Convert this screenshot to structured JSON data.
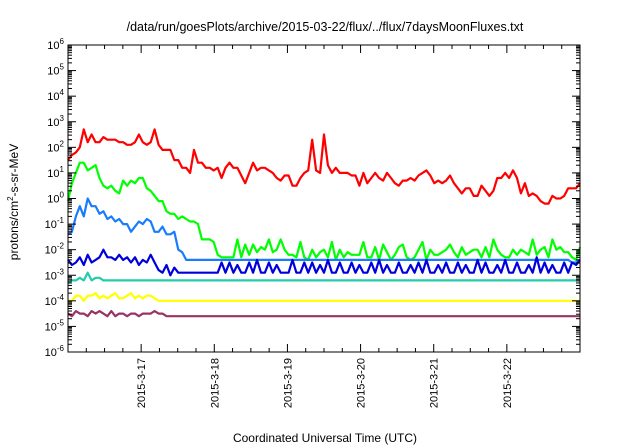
{
  "chart_data": {
    "type": "line",
    "title": "/data/run/goesPlots/archive/2015-03-22/flux/../flux/7daysMoonFluxes.txt",
    "xlabel": "Coordinated Universal Time (UTC)",
    "ylabel_main": "protons/cm",
    "ylabel_sup": "2",
    "ylabel_rest": "-s-sr-MeV",
    "y_scale": "log",
    "ylim_exponents": [
      -6,
      6
    ],
    "y_ticks": [
      {
        "base": "10",
        "exp": "-6",
        "e": -6
      },
      {
        "base": "10",
        "exp": "-5",
        "e": -5
      },
      {
        "base": "10",
        "exp": "-4",
        "e": -4
      },
      {
        "base": "10",
        "exp": "-3",
        "e": -3
      },
      {
        "base": "10",
        "exp": "-2",
        "e": -2
      },
      {
        "base": "10",
        "exp": "-1",
        "e": -1
      },
      {
        "base": "10",
        "exp": "0",
        "e": 0
      },
      {
        "base": "10",
        "exp": "1",
        "e": 1
      },
      {
        "base": "10",
        "exp": "2",
        "e": 2
      },
      {
        "base": "10",
        "exp": "3",
        "e": 3
      },
      {
        "base": "10",
        "exp": "4",
        "e": 4
      },
      {
        "base": "10",
        "exp": "5",
        "e": 5
      },
      {
        "base": "10",
        "exp": "6",
        "e": 6
      }
    ],
    "x_range_days": [
      "2015-03-16T00:00",
      "2015-03-23T00:00"
    ],
    "x_ticks": [
      "2015-3-17",
      "2015-3-18",
      "2015-3-19",
      "2015-3-20",
      "2015-3-21",
      "2015-3-22"
    ],
    "grid": false,
    "legend": "none",
    "series": [
      {
        "color": "#ff0000",
        "y": [
          1.5,
          1.7,
          1.8,
          2.0,
          2.7,
          2.2,
          2.5,
          2.2,
          2.2,
          2.4,
          2.3,
          2.3,
          2.3,
          2.2,
          2.2,
          2.1,
          2.1,
          2.2,
          2.5,
          2.2,
          2.1,
          2.2,
          2.7,
          2.1,
          1.9,
          1.9,
          1.9,
          1.5,
          1.5,
          1.2,
          1.2,
          1.0,
          1.9,
          1.4,
          1.4,
          1.2,
          1.2,
          1.1,
          1.2,
          0.8,
          1.2,
          1.4,
          1.2,
          1.2,
          0.9,
          0.6,
          1.0,
          1.4,
          1.1,
          1.2,
          1.2,
          1.1,
          1.0,
          0.8,
          0.7,
          0.9,
          0.9,
          0.5,
          0.5,
          0.8,
          1.0,
          1.1,
          2.3,
          1.1,
          1.0,
          2.5,
          1.3,
          1.0,
          1.2,
          1.0,
          1.0,
          1.0,
          0.9,
          0.9,
          0.5,
          1.0,
          0.6,
          0.8,
          1.0,
          0.8,
          0.7,
          1.0,
          0.8,
          0.6,
          0.5,
          0.7,
          0.7,
          0.8,
          0.7,
          0.9,
          1.0,
          1.1,
          0.9,
          0.6,
          0.7,
          0.6,
          0.7,
          0.9,
          0.6,
          0.4,
          0.2,
          0.4,
          0.4,
          0.1,
          0.1,
          0.5,
          0.3,
          0.1,
          0.3,
          0.8,
          0.8,
          1.0,
          0.8,
          1.1,
          0.8,
          0.2,
          0.6,
          0.1,
          0.2,
          0.1,
          -0.1,
          -0.2,
          -0.2,
          0.1,
          0.0,
          0.0,
          0.1,
          0.4,
          0.4,
          0.4,
          0.6
        ]
      },
      {
        "color": "#00ff00",
        "y": [
          -0.1,
          0.6,
          1.0,
          1.4,
          1.4,
          1.1,
          1.2,
          1.3,
          0.8,
          0.5,
          0.4,
          0.5,
          0.3,
          0.2,
          0.7,
          0.5,
          0.7,
          0.6,
          0.8,
          0.8,
          0.4,
          0.3,
          0.1,
          -0.1,
          -0.1,
          -0.5,
          -0.6,
          -0.6,
          -0.8,
          -0.7,
          -0.8,
          -0.9,
          -0.9,
          -1.0,
          -1.6,
          -1.6,
          -1.6,
          -1.7,
          -2.2,
          -2.3,
          -2.3,
          -2.3,
          -2.3,
          -1.6,
          -2.3,
          -1.8,
          -2.2,
          -1.8,
          -2.1,
          -1.9,
          -2.0,
          -1.6,
          -2.1,
          -2.0,
          -1.6,
          -2.0,
          -2.2,
          -2.2,
          -2.3,
          -1.7,
          -2.3,
          -2.4,
          -2.0,
          -2.3,
          -2.1,
          -2.0,
          -2.3,
          -1.7,
          -2.4,
          -2.0,
          -2.3,
          -2.1,
          -2.2,
          -2.2,
          -2.2,
          -1.7,
          -2.3,
          -2.3,
          -1.9,
          -2.4,
          -1.8,
          -2.1,
          -2.4,
          -2.2,
          -1.9,
          -1.8,
          -2.3,
          -2.4,
          -2.3,
          -2.0,
          -1.7,
          -2.4,
          -2.0,
          -2.2,
          -2.2,
          -2.1,
          -2.0,
          -1.8,
          -2.1,
          -2.3,
          -1.9,
          -2.2,
          -2.1,
          -2.0,
          -2.0,
          -2.3,
          -1.9,
          -2.3,
          -1.6,
          -2.0,
          -2.2,
          -2.3,
          -2.3,
          -2.0,
          -2.2,
          -2.0,
          -2.1,
          -2.2,
          -1.6,
          -2.2,
          -2.0,
          -1.9,
          -2.3,
          -1.6,
          -2.0,
          -1.9,
          -2.1,
          -2.1,
          -2.3,
          -2.4,
          -1.9
        ]
      },
      {
        "color": "#1a7bff",
        "y": [
          -1.4,
          -1.3,
          -0.7,
          -0.3,
          -0.7,
          0.0,
          -0.3,
          -0.3,
          -0.6,
          -0.5,
          -0.8,
          -0.7,
          -0.9,
          -0.8,
          -1.0,
          -1.0,
          -1.3,
          -1.1,
          -0.9,
          -1.0,
          -0.8,
          -0.9,
          -1.3,
          -1.3,
          -1.1,
          -1.4,
          -1.4,
          -1.3,
          -2.0,
          -2.1,
          -2.4,
          -2.4,
          -2.4,
          -2.4,
          -2.4,
          -2.4,
          -2.4,
          -2.4,
          -2.4,
          -2.4,
          -2.4,
          -2.4,
          -2.4,
          -2.4,
          -2.4,
          -2.4,
          -2.4,
          -2.4,
          -2.4,
          -2.4,
          -2.4,
          -2.4,
          -2.4,
          -2.4,
          -2.4,
          -2.4,
          -2.4,
          -2.4,
          -2.4,
          -2.4,
          -2.4,
          -2.4,
          -2.4,
          -2.4,
          -2.4,
          -2.4,
          -2.4,
          -2.4,
          -2.4,
          -2.4,
          -2.4,
          -2.4,
          -2.4,
          -2.4,
          -2.4,
          -2.4,
          -2.4,
          -2.4,
          -2.4,
          -2.4,
          -2.4,
          -2.4,
          -2.4,
          -2.4,
          -2.4,
          -2.4,
          -2.4,
          -2.4,
          -2.4,
          -2.4,
          -2.4,
          -2.4,
          -2.4,
          -2.4,
          -2.4,
          -2.4,
          -2.4,
          -2.4,
          -2.4,
          -2.4,
          -2.4,
          -2.4,
          -2.4,
          -2.4,
          -2.4,
          -2.4,
          -2.4,
          -2.4,
          -2.4,
          -2.4,
          -2.4,
          -2.4,
          -2.4,
          -2.4,
          -2.4,
          -2.4,
          -2.4,
          -2.4,
          -2.4,
          -2.4,
          -2.4,
          -2.4,
          -2.4,
          -2.4,
          -2.4,
          -2.4,
          -2.4,
          -2.4,
          -2.5,
          -2.5,
          -2.4
        ]
      },
      {
        "color": "#0000dd",
        "y": [
          -2.4,
          -2.6,
          -2.5,
          -2.3,
          -2.6,
          -2.2,
          -2.5,
          -2.4,
          -2.3,
          -2.0,
          -2.3,
          -2.3,
          -2.4,
          -2.2,
          -2.4,
          -2.3,
          -2.5,
          -2.3,
          -2.6,
          -2.4,
          -2.5,
          -2.2,
          -2.5,
          -2.8,
          -2.9,
          -2.6,
          -3.0,
          -2.7,
          -2.9,
          -2.9,
          -2.9,
          -2.9,
          -2.9,
          -2.9,
          -2.9,
          -2.9,
          -2.9,
          -2.9,
          -2.9,
          -2.5,
          -2.9,
          -2.5,
          -2.9,
          -2.6,
          -2.9,
          -2.9,
          -2.5,
          -2.9,
          -2.4,
          -2.9,
          -2.9,
          -2.5,
          -2.9,
          -2.6,
          -2.9,
          -2.9,
          -2.9,
          -2.4,
          -2.9,
          -2.9,
          -2.5,
          -2.9,
          -2.5,
          -2.9,
          -2.6,
          -2.9,
          -2.4,
          -2.9,
          -2.9,
          -2.5,
          -2.9,
          -2.9,
          -2.5,
          -2.9,
          -2.6,
          -2.9,
          -2.9,
          -2.5,
          -2.9,
          -2.4,
          -2.9,
          -2.6,
          -2.9,
          -2.9,
          -2.5,
          -2.9,
          -2.9,
          -2.6,
          -2.9,
          -2.5,
          -2.9,
          -2.4,
          -2.9,
          -2.9,
          -2.6,
          -2.9,
          -2.5,
          -2.9,
          -2.9,
          -2.5,
          -2.9,
          -2.6,
          -2.9,
          -2.9,
          -2.4,
          -2.9,
          -2.5,
          -2.9,
          -2.9,
          -2.6,
          -2.9,
          -2.4,
          -2.9,
          -2.9,
          -2.5,
          -2.9,
          -2.9,
          -2.6,
          -2.9,
          -2.3,
          -2.9,
          -2.5,
          -2.9,
          -2.6,
          -2.9,
          -2.9,
          -2.5,
          -2.9,
          -2.5,
          -2.6,
          -2.4
        ]
      },
      {
        "color": "#22ccaa",
        "y": [
          -3.3,
          -3.2,
          -3.2,
          -3.1,
          -3.2,
          -2.9,
          -3.2,
          -3.1,
          -3.1,
          -3.2,
          -3.2,
          -3.2,
          -3.2,
          -3.2,
          -3.2,
          -3.2,
          -3.2,
          -3.2,
          -3.2,
          -3.2,
          -3.2,
          -3.2,
          -3.2,
          -3.2,
          -3.2,
          -3.2,
          -3.2,
          -3.2,
          -3.2,
          -3.2,
          -3.2,
          -3.2,
          -3.2,
          -3.2,
          -3.2,
          -3.2,
          -3.2,
          -3.2,
          -3.2,
          -3.2,
          -3.2,
          -3.2,
          -3.2,
          -3.2,
          -3.2,
          -3.2,
          -3.2,
          -3.2,
          -3.2,
          -3.2,
          -3.2,
          -3.2,
          -3.2,
          -3.2,
          -3.2,
          -3.2,
          -3.2,
          -3.2,
          -3.2,
          -3.2,
          -3.2,
          -3.2,
          -3.2,
          -3.2,
          -3.2,
          -3.2,
          -3.2,
          -3.2,
          -3.2,
          -3.2,
          -3.2,
          -3.2,
          -3.2,
          -3.2,
          -3.2,
          -3.2,
          -3.2,
          -3.2,
          -3.2,
          -3.2,
          -3.2,
          -3.2,
          -3.2,
          -3.2,
          -3.2,
          -3.2,
          -3.2,
          -3.2,
          -3.2,
          -3.2,
          -3.2,
          -3.2,
          -3.2,
          -3.2,
          -3.2,
          -3.2,
          -3.2,
          -3.2,
          -3.2,
          -3.2,
          -3.2,
          -3.2,
          -3.2,
          -3.2,
          -3.2,
          -3.2,
          -3.2,
          -3.2,
          -3.2,
          -3.2,
          -3.2,
          -3.2,
          -3.2,
          -3.2,
          -3.2,
          -3.2,
          -3.2,
          -3.2,
          -3.2,
          -3.2,
          -3.2,
          -3.2,
          -3.2,
          -3.2,
          -3.2,
          -3.2,
          -3.2,
          -3.2,
          -3.2,
          -3.2,
          -3.2
        ]
      },
      {
        "color": "#ffff00",
        "y": [
          -4.0,
          -4.0,
          -3.8,
          -3.8,
          -4.0,
          -3.8,
          -3.8,
          -3.7,
          -3.9,
          -3.8,
          -3.9,
          -3.8,
          -3.7,
          -3.9,
          -3.9,
          -3.8,
          -3.7,
          -3.9,
          -3.8,
          -3.9,
          -3.8,
          -3.8,
          -3.9,
          -4.0,
          -4.0,
          -4.0,
          -4.0,
          -4.0,
          -4.0,
          -4.0,
          -4.0,
          -4.0,
          -4.0,
          -4.0,
          -4.0,
          -4.0,
          -4.0,
          -4.0,
          -4.0,
          -4.0,
          -4.0,
          -4.0,
          -4.0,
          -4.0,
          -4.0,
          -4.0,
          -4.0,
          -4.0,
          -4.0,
          -4.0,
          -4.0,
          -4.0,
          -4.0,
          -4.0,
          -4.0,
          -4.0,
          -4.0,
          -4.0,
          -4.0,
          -4.0,
          -4.0,
          -4.0,
          -4.0,
          -4.0,
          -4.0,
          -4.0,
          -4.0,
          -4.0,
          -4.0,
          -4.0,
          -4.0,
          -4.0,
          -4.0,
          -4.0,
          -4.0,
          -4.0,
          -4.0,
          -4.0,
          -4.0,
          -4.0,
          -4.0,
          -4.0,
          -4.0,
          -4.0,
          -4.0,
          -4.0,
          -4.0,
          -4.0,
          -4.0,
          -4.0,
          -4.0,
          -4.0,
          -4.0,
          -4.0,
          -4.0,
          -4.0,
          -4.0,
          -4.0,
          -4.0,
          -4.0,
          -4.0,
          -4.0,
          -4.0,
          -4.0,
          -4.0,
          -4.0,
          -4.0,
          -4.0,
          -4.0,
          -4.0,
          -4.0,
          -4.0,
          -4.0,
          -4.0,
          -4.0,
          -4.0,
          -4.0,
          -4.0,
          -4.0,
          -4.0,
          -4.0,
          -4.0,
          -4.0,
          -4.0,
          -4.0,
          -4.0,
          -4.0,
          -4.0,
          -4.0,
          -4.0,
          -4.0
        ]
      },
      {
        "color": "#993366",
        "y": [
          -4.5,
          -4.6,
          -4.4,
          -4.5,
          -4.5,
          -4.6,
          -4.4,
          -4.5,
          -4.4,
          -4.5,
          -4.6,
          -4.4,
          -4.6,
          -4.5,
          -4.5,
          -4.6,
          -4.5,
          -4.5,
          -4.6,
          -4.5,
          -4.5,
          -4.5,
          -4.4,
          -4.5,
          -4.5,
          -4.6,
          -4.6,
          -4.6,
          -4.6,
          -4.6,
          -4.6,
          -4.6,
          -4.6,
          -4.6,
          -4.6,
          -4.6,
          -4.6,
          -4.6,
          -4.6,
          -4.6,
          -4.6,
          -4.6,
          -4.6,
          -4.6,
          -4.6,
          -4.6,
          -4.6,
          -4.6,
          -4.6,
          -4.6,
          -4.6,
          -4.6,
          -4.6,
          -4.6,
          -4.6,
          -4.6,
          -4.6,
          -4.6,
          -4.6,
          -4.6,
          -4.6,
          -4.6,
          -4.6,
          -4.6,
          -4.6,
          -4.6,
          -4.6,
          -4.6,
          -4.6,
          -4.6,
          -4.6,
          -4.6,
          -4.6,
          -4.6,
          -4.6,
          -4.6,
          -4.6,
          -4.6,
          -4.6,
          -4.6,
          -4.6,
          -4.6,
          -4.6,
          -4.6,
          -4.6,
          -4.6,
          -4.6,
          -4.6,
          -4.6,
          -4.6,
          -4.6,
          -4.6,
          -4.6,
          -4.6,
          -4.6,
          -4.6,
          -4.6,
          -4.6,
          -4.6,
          -4.6,
          -4.6,
          -4.6,
          -4.6,
          -4.6,
          -4.6,
          -4.6,
          -4.6,
          -4.6,
          -4.6,
          -4.6,
          -4.6,
          -4.6,
          -4.6,
          -4.6,
          -4.6,
          -4.6,
          -4.6,
          -4.6,
          -4.6,
          -4.6,
          -4.6,
          -4.6,
          -4.6,
          -4.6,
          -4.6,
          -4.6,
          -4.6,
          -4.6,
          -4.6,
          -4.6,
          -4.6
        ]
      }
    ]
  }
}
